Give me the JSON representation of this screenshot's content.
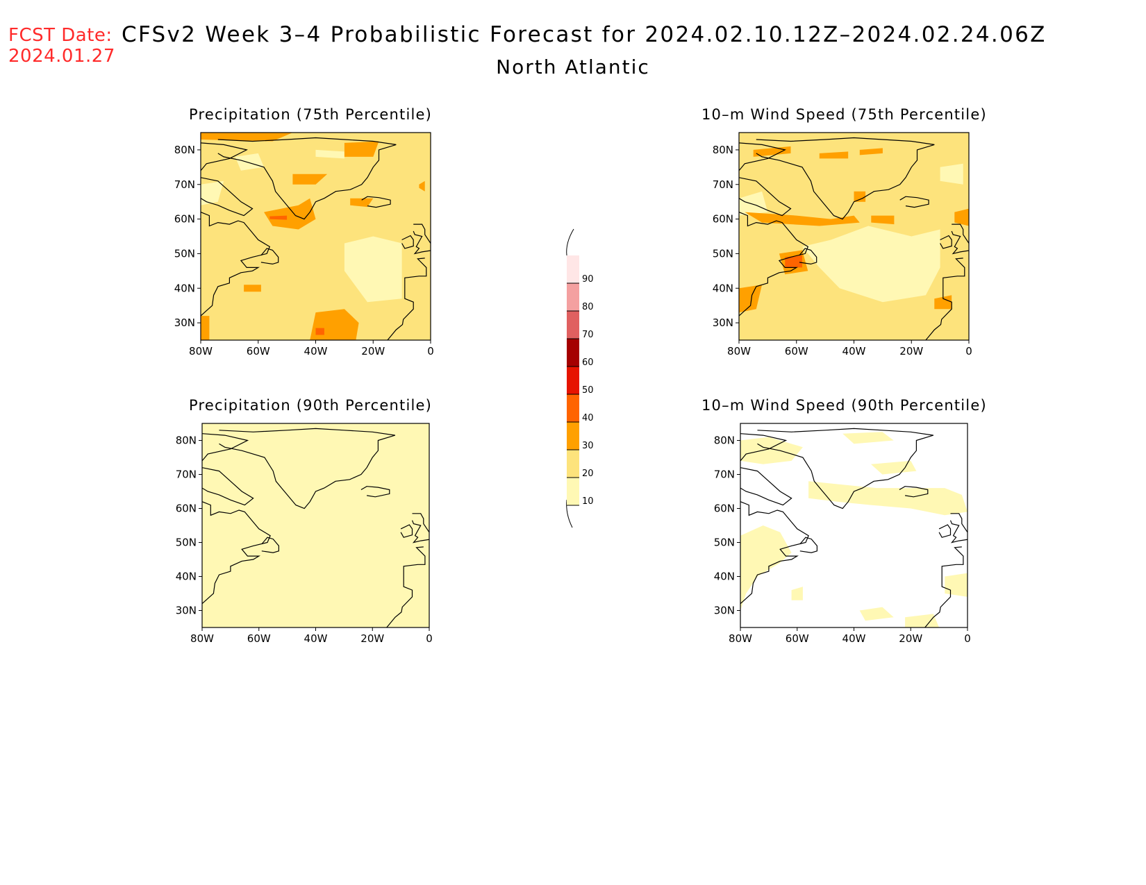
{
  "header": {
    "fcst_label": "FCST Date:",
    "fcst_date": "2024.01.27",
    "title": "CFSv2 Week 3–4 Probabilistic Forecast for 2024.02.10.12Z–2024.02.24.06Z",
    "region": "North Atlantic"
  },
  "axes": {
    "lat_labels": [
      "80N",
      "70N",
      "60N",
      "50N",
      "40N",
      "30N"
    ],
    "lat_values": [
      80,
      70,
      60,
      50,
      40,
      30
    ],
    "lat_range": [
      25,
      85
    ],
    "lon_labels": [
      "80W",
      "60W",
      "40W",
      "20W",
      "0"
    ],
    "lon_values": [
      -80,
      -60,
      -40,
      -20,
      0
    ],
    "lon_range": [
      -80,
      0
    ]
  },
  "panels": [
    {
      "id": "precip75",
      "title": "Precipitation (75th Percentile)",
      "base_level": 20
    },
    {
      "id": "wind75",
      "title": "10–m Wind Speed (75th Percentile)",
      "base_level": 20
    },
    {
      "id": "precip90",
      "title": "Precipitation (90th Percentile)",
      "base_level": 10
    },
    {
      "id": "wind90",
      "title": "10–m Wind Speed (90th Percentile)",
      "base_level": 0
    }
  ],
  "colorbar": {
    "levels": [
      "10",
      "20",
      "30",
      "40",
      "50",
      "60",
      "70",
      "80",
      "90"
    ],
    "colors": [
      "#fff8b4",
      "#fde37c",
      "#ffa000",
      "#ff6400",
      "#e61400",
      "#a50000",
      "#e06060",
      "#f4a0a0",
      "#ffe6e6"
    ]
  }
}
